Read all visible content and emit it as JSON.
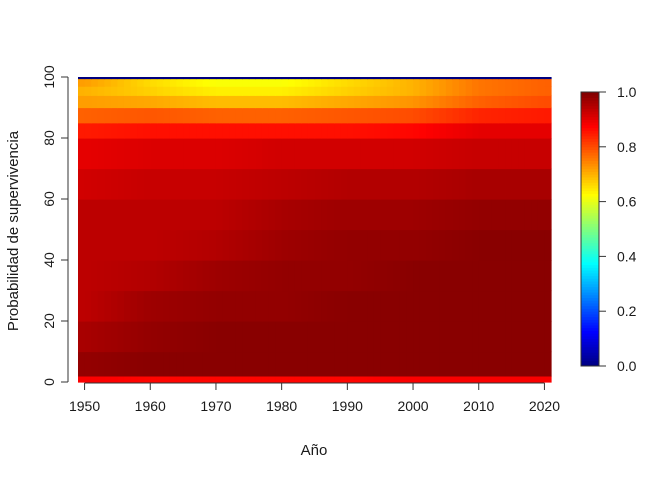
{
  "chart_data": {
    "type": "heatmap",
    "title": "",
    "xlabel": "Año",
    "ylabel": "Probabilidad de supervivencia",
    "xlim": [
      1949,
      2021
    ],
    "ylim": [
      0,
      100
    ],
    "x_ticks": [
      {
        "value": 1950,
        "label": "1950"
      },
      {
        "value": 1960,
        "label": "1960"
      },
      {
        "value": 1970,
        "label": "1970"
      },
      {
        "value": 1980,
        "label": "1980"
      },
      {
        "value": 1990,
        "label": "1990"
      },
      {
        "value": 2000,
        "label": "2000"
      },
      {
        "value": 2010,
        "label": "2010"
      },
      {
        "value": 2020,
        "label": "2020"
      }
    ],
    "y_ticks": [
      {
        "value": 0,
        "label": "0"
      },
      {
        "value": 20,
        "label": "20"
      },
      {
        "value": 40,
        "label": "40"
      },
      {
        "value": 60,
        "label": "60"
      },
      {
        "value": 80,
        "label": "80"
      },
      {
        "value": 100,
        "label": "100"
      }
    ],
    "colorbar": {
      "min": 0.0,
      "max": 1.0,
      "colors": [
        "#00007F",
        "#0000FF",
        "#007FFF",
        "#00FFFF",
        "#7FFF7F",
        "#FFFF00",
        "#FF7F00",
        "#FF0000",
        "#7F0000"
      ],
      "ticks": [
        {
          "value": 0.0,
          "label": "0.0"
        },
        {
          "value": 0.2,
          "label": "0.2"
        },
        {
          "value": 0.4,
          "label": "0.4"
        },
        {
          "value": 0.6,
          "label": "0.6"
        },
        {
          "value": 0.8,
          "label": "0.8"
        },
        {
          "value": 1.0,
          "label": "1.0"
        }
      ]
    },
    "x": [
      1950,
      1960,
      1970,
      1980,
      1990,
      2000,
      2010,
      2020
    ],
    "y_bands": [
      [
        0,
        2
      ],
      [
        2,
        10
      ],
      [
        10,
        20
      ],
      [
        20,
        30
      ],
      [
        30,
        40
      ],
      [
        40,
        50
      ],
      [
        50,
        60
      ],
      [
        60,
        70
      ],
      [
        70,
        80
      ],
      [
        80,
        85
      ],
      [
        85,
        90
      ],
      [
        90,
        94
      ],
      [
        94,
        97
      ],
      [
        97,
        99.5
      ],
      [
        99.5,
        100
      ]
    ],
    "z": [
      [
        0.88,
        0.87,
        0.87,
        0.87,
        0.87,
        0.88,
        0.88,
        0.88
      ],
      [
        0.98,
        0.99,
        0.99,
        0.99,
        0.99,
        0.99,
        0.99,
        0.99
      ],
      [
        0.96,
        0.98,
        0.99,
        0.99,
        0.99,
        0.99,
        0.99,
        0.99
      ],
      [
        0.94,
        0.97,
        0.98,
        0.98,
        0.99,
        0.99,
        0.99,
        0.99
      ],
      [
        0.94,
        0.95,
        0.97,
        0.98,
        0.98,
        0.99,
        0.99,
        0.99
      ],
      [
        0.94,
        0.94,
        0.95,
        0.97,
        0.98,
        0.98,
        0.99,
        0.99
      ],
      [
        0.94,
        0.94,
        0.94,
        0.96,
        0.97,
        0.97,
        0.98,
        0.98
      ],
      [
        0.92,
        0.93,
        0.93,
        0.94,
        0.95,
        0.95,
        0.96,
        0.96
      ],
      [
        0.9,
        0.91,
        0.91,
        0.92,
        0.92,
        0.92,
        0.93,
        0.93
      ],
      [
        0.85,
        0.86,
        0.86,
        0.86,
        0.86,
        0.87,
        0.9,
        0.9
      ],
      [
        0.78,
        0.79,
        0.78,
        0.78,
        0.79,
        0.8,
        0.84,
        0.85
      ],
      [
        0.72,
        0.71,
        0.69,
        0.69,
        0.71,
        0.73,
        0.78,
        0.8
      ],
      [
        0.7,
        0.67,
        0.64,
        0.64,
        0.67,
        0.7,
        0.76,
        0.78
      ],
      [
        0.72,
        0.66,
        0.62,
        0.62,
        0.66,
        0.7,
        0.76,
        0.78
      ],
      [
        0.0,
        0.0,
        0.0,
        0.0,
        0.0,
        0.0,
        0.0,
        0.0
      ]
    ]
  }
}
